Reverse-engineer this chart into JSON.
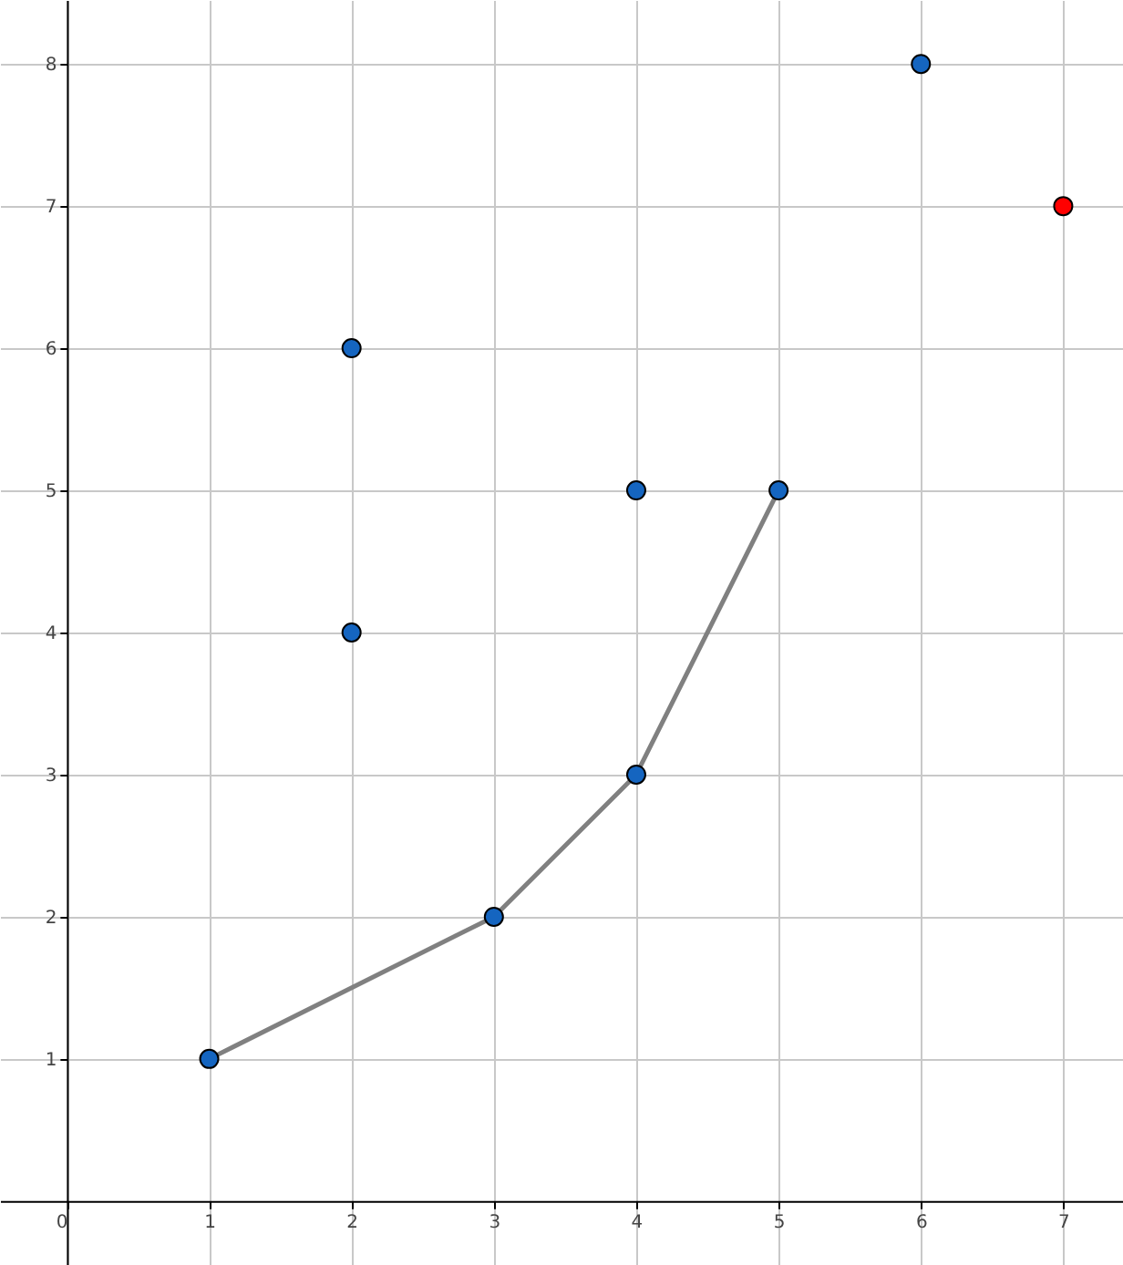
{
  "chart_data": {
    "type": "scatter",
    "xlim": [
      -0.47,
      7.42
    ],
    "ylim": [
      -0.45,
      8.45
    ],
    "xticks": [
      0,
      1,
      2,
      3,
      4,
      5,
      6,
      7
    ],
    "yticks": [
      1,
      2,
      3,
      4,
      5,
      6,
      7,
      8
    ],
    "grid": true,
    "marker": "circle",
    "series": [
      {
        "type": "line",
        "color": "#808080",
        "x": [
          1,
          3,
          4,
          5
        ],
        "values": [
          1,
          2,
          3,
          5
        ],
        "marker": "none"
      },
      {
        "color": "#1565c0",
        "x": [
          1,
          2,
          2,
          3,
          4,
          4,
          5,
          6
        ],
        "values": [
          1,
          4,
          6,
          2,
          3,
          5,
          5,
          8
        ]
      },
      {
        "color": "#ff0000",
        "x": [
          7
        ],
        "values": [
          7
        ]
      }
    ]
  }
}
